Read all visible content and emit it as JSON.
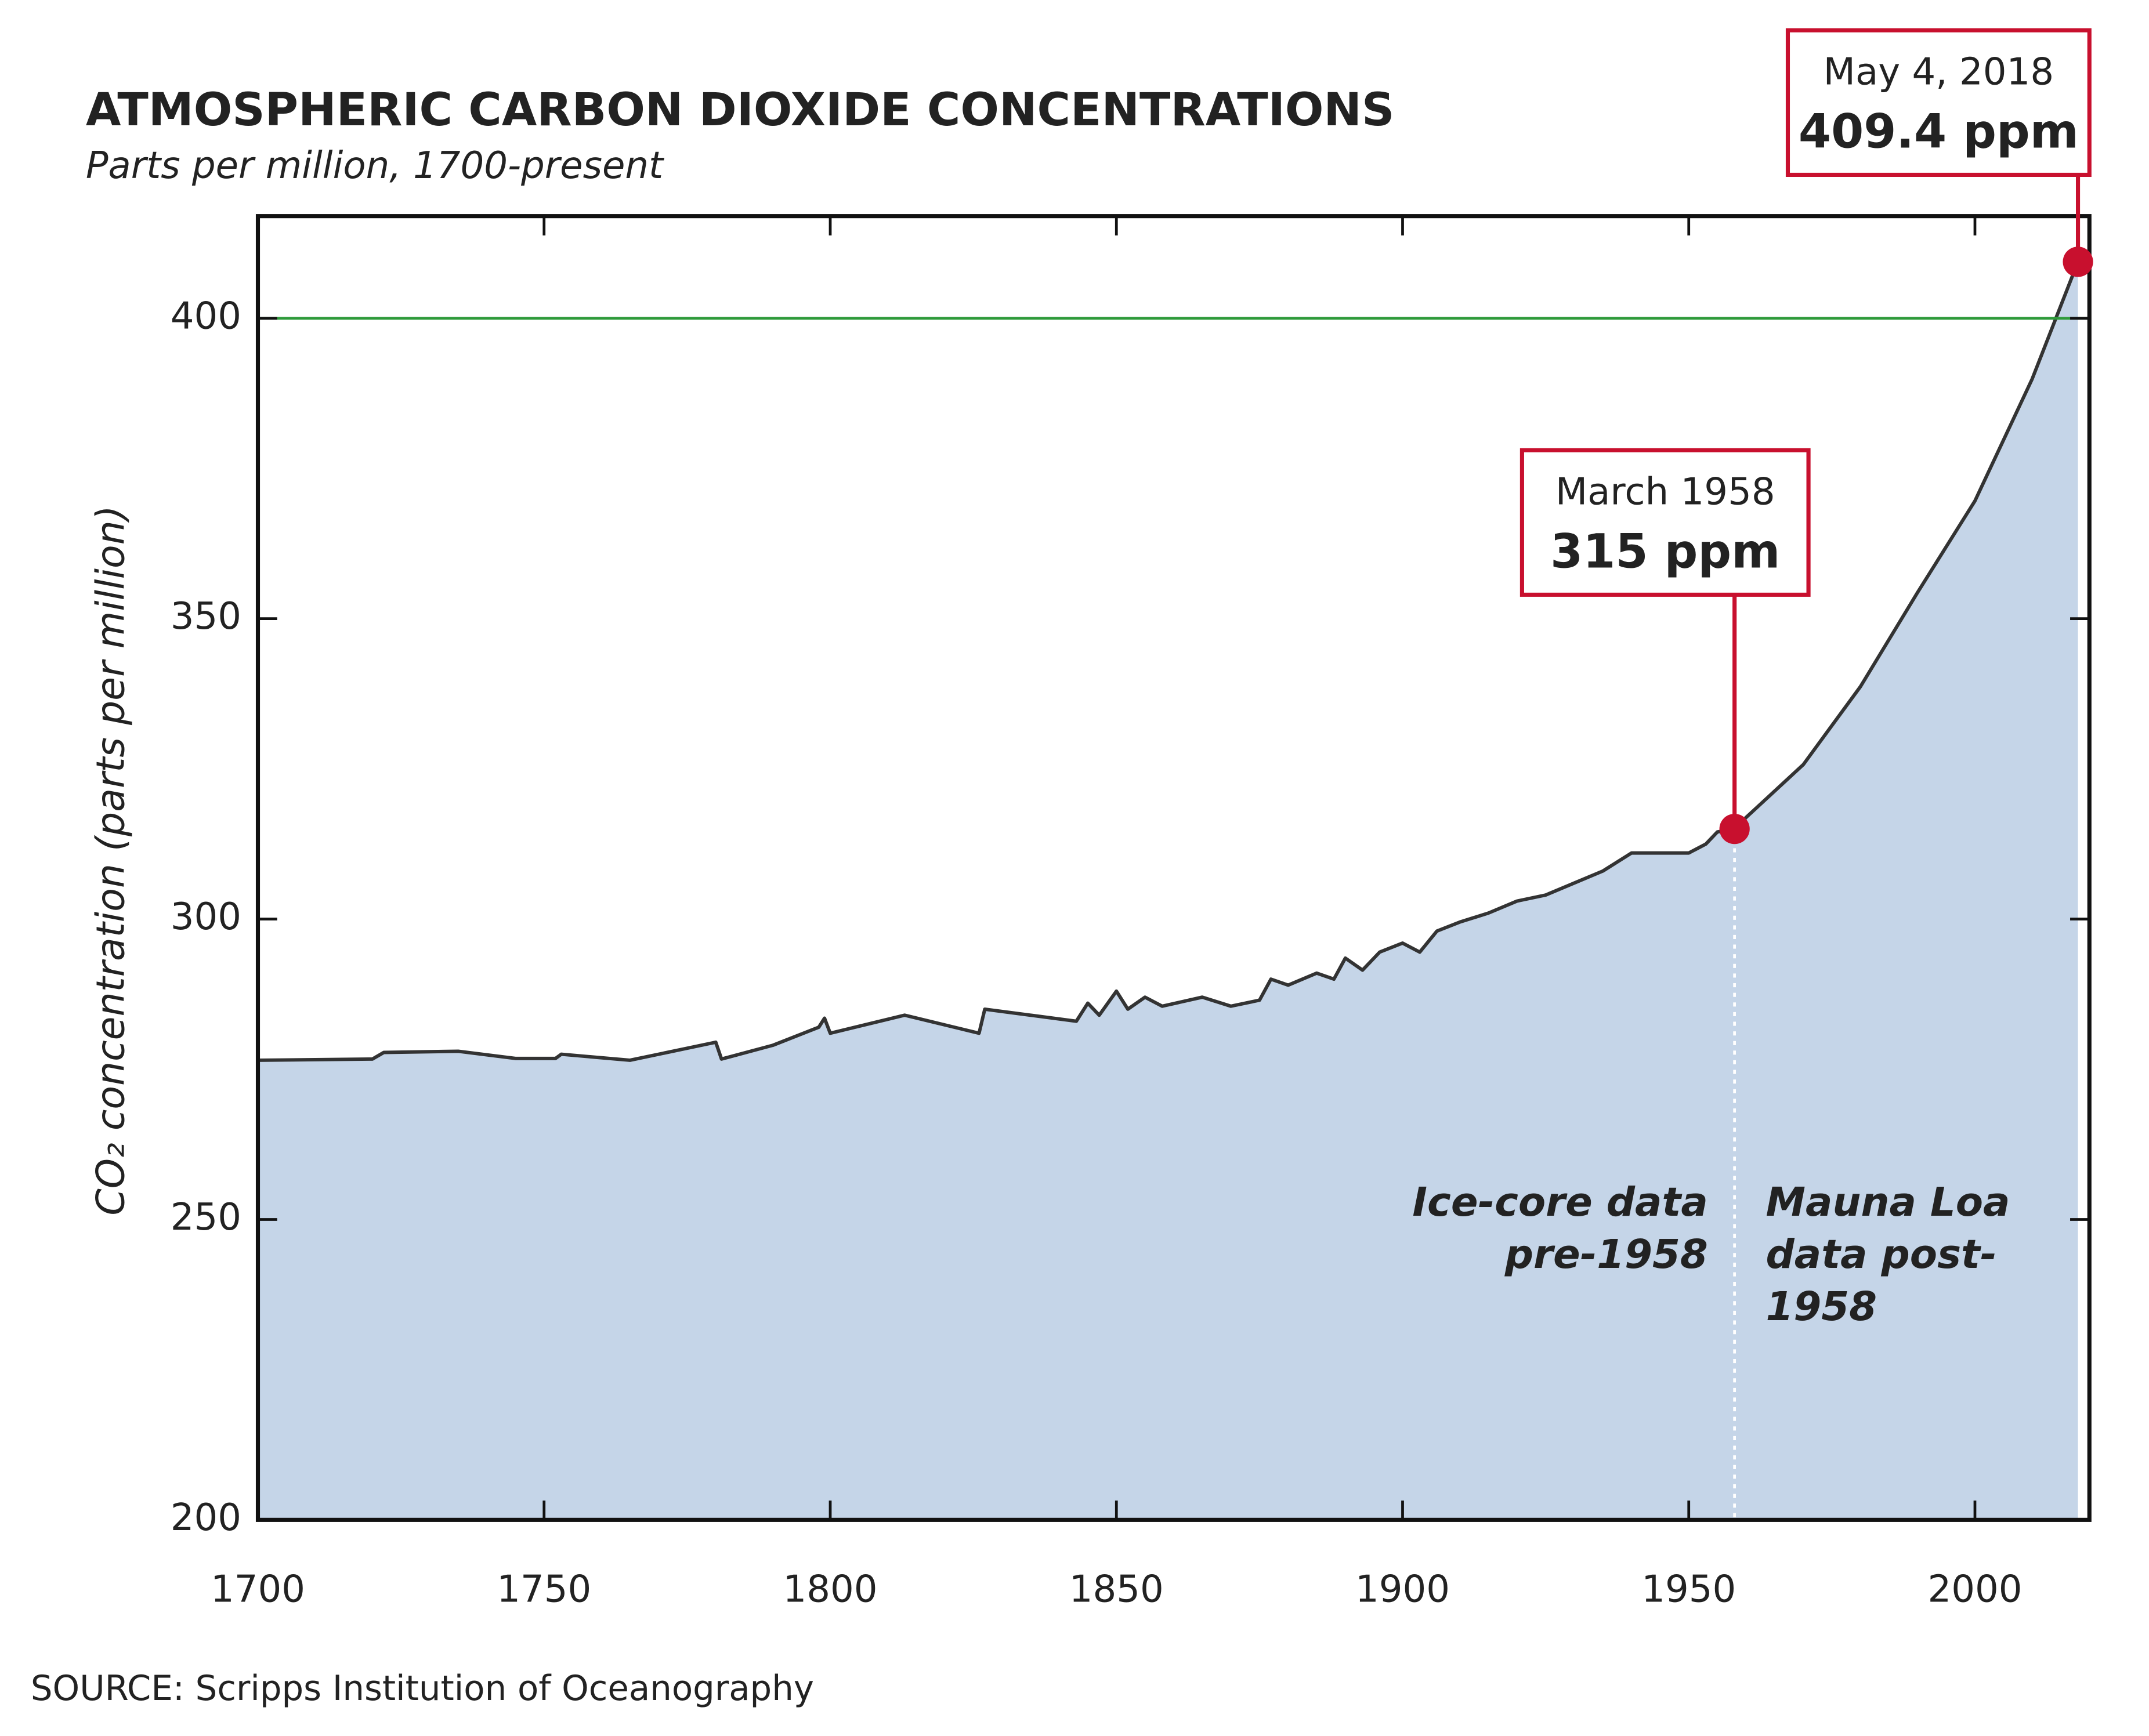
{
  "chart_data": {
    "type": "area",
    "title": "ATMOSPHERIC CARBON DIOXIDE CONCENTRATIONS",
    "subtitle": "Parts per million, 1700-present",
    "y_label": "CO₂ concentration (parts per million)",
    "source": "SOURCE: Scripps Institution of Oceanography",
    "x": [
      1700,
      1720,
      1722,
      1735,
      1745,
      1752,
      1753,
      1765,
      1775,
      1780,
      1781,
      1790,
      1798,
      1799,
      1800,
      1813,
      1826,
      1827,
      1835,
      1843,
      1845,
      1847,
      1850,
      1852,
      1855,
      1858,
      1865,
      1870,
      1875,
      1877,
      1880,
      1885,
      1888,
      1890,
      1893,
      1896,
      1900,
      1903,
      1906,
      1910,
      1915,
      1920,
      1925,
      1930,
      1935,
      1940,
      1945,
      1950,
      1953,
      1955,
      1958,
      1960,
      1970,
      1980,
      1990,
      2000,
      2010,
      2018
    ],
    "series": [
      {
        "color": "#333333",
        "fill": "#c5d5e8",
        "values": [
          276.5,
          276.7,
          277.8,
          278,
          276.8,
          276.8,
          277.5,
          276.5,
          278.5,
          279.5,
          276.7,
          279,
          282,
          283.5,
          281,
          284,
          281,
          285,
          284,
          283,
          286,
          284,
          288,
          285,
          287,
          285.5,
          287,
          285.5,
          286.5,
          290,
          289,
          291,
          290,
          293.5,
          291.5,
          294.5,
          296,
          294.5,
          298,
          299.5,
          301,
          303,
          304,
          306,
          308,
          311,
          311,
          311,
          312.5,
          314.5,
          315,
          316.9,
          325.7,
          338.7,
          354.4,
          369.6,
          389.9,
          409.4
        ]
      }
    ],
    "xlim": [
      1700,
      2020
    ],
    "ylim": [
      200,
      417
    ],
    "xticks": [
      1700,
      1750,
      1800,
      1850,
      1900,
      1950,
      2000
    ],
    "yticks": [
      200,
      250,
      300,
      350,
      400
    ],
    "reference_line": {
      "value": 400,
      "color": "#2e9a3a"
    },
    "divider": 1958,
    "annotations": [
      {
        "x": 1958,
        "y": 315,
        "lines": [
          "March 1958",
          "315 ppm"
        ],
        "color": "#c8102e"
      },
      {
        "x": 2018,
        "y": 409.4,
        "lines": [
          "May 4, 2018",
          "409.4 ppm"
        ],
        "color": "#c8102e"
      }
    ],
    "notes": [
      {
        "lines": [
          "Ice-core data",
          "pre-1958"
        ]
      },
      {
        "lines": [
          "Mauna Loa",
          "data post-",
          "1958"
        ]
      }
    ]
  }
}
